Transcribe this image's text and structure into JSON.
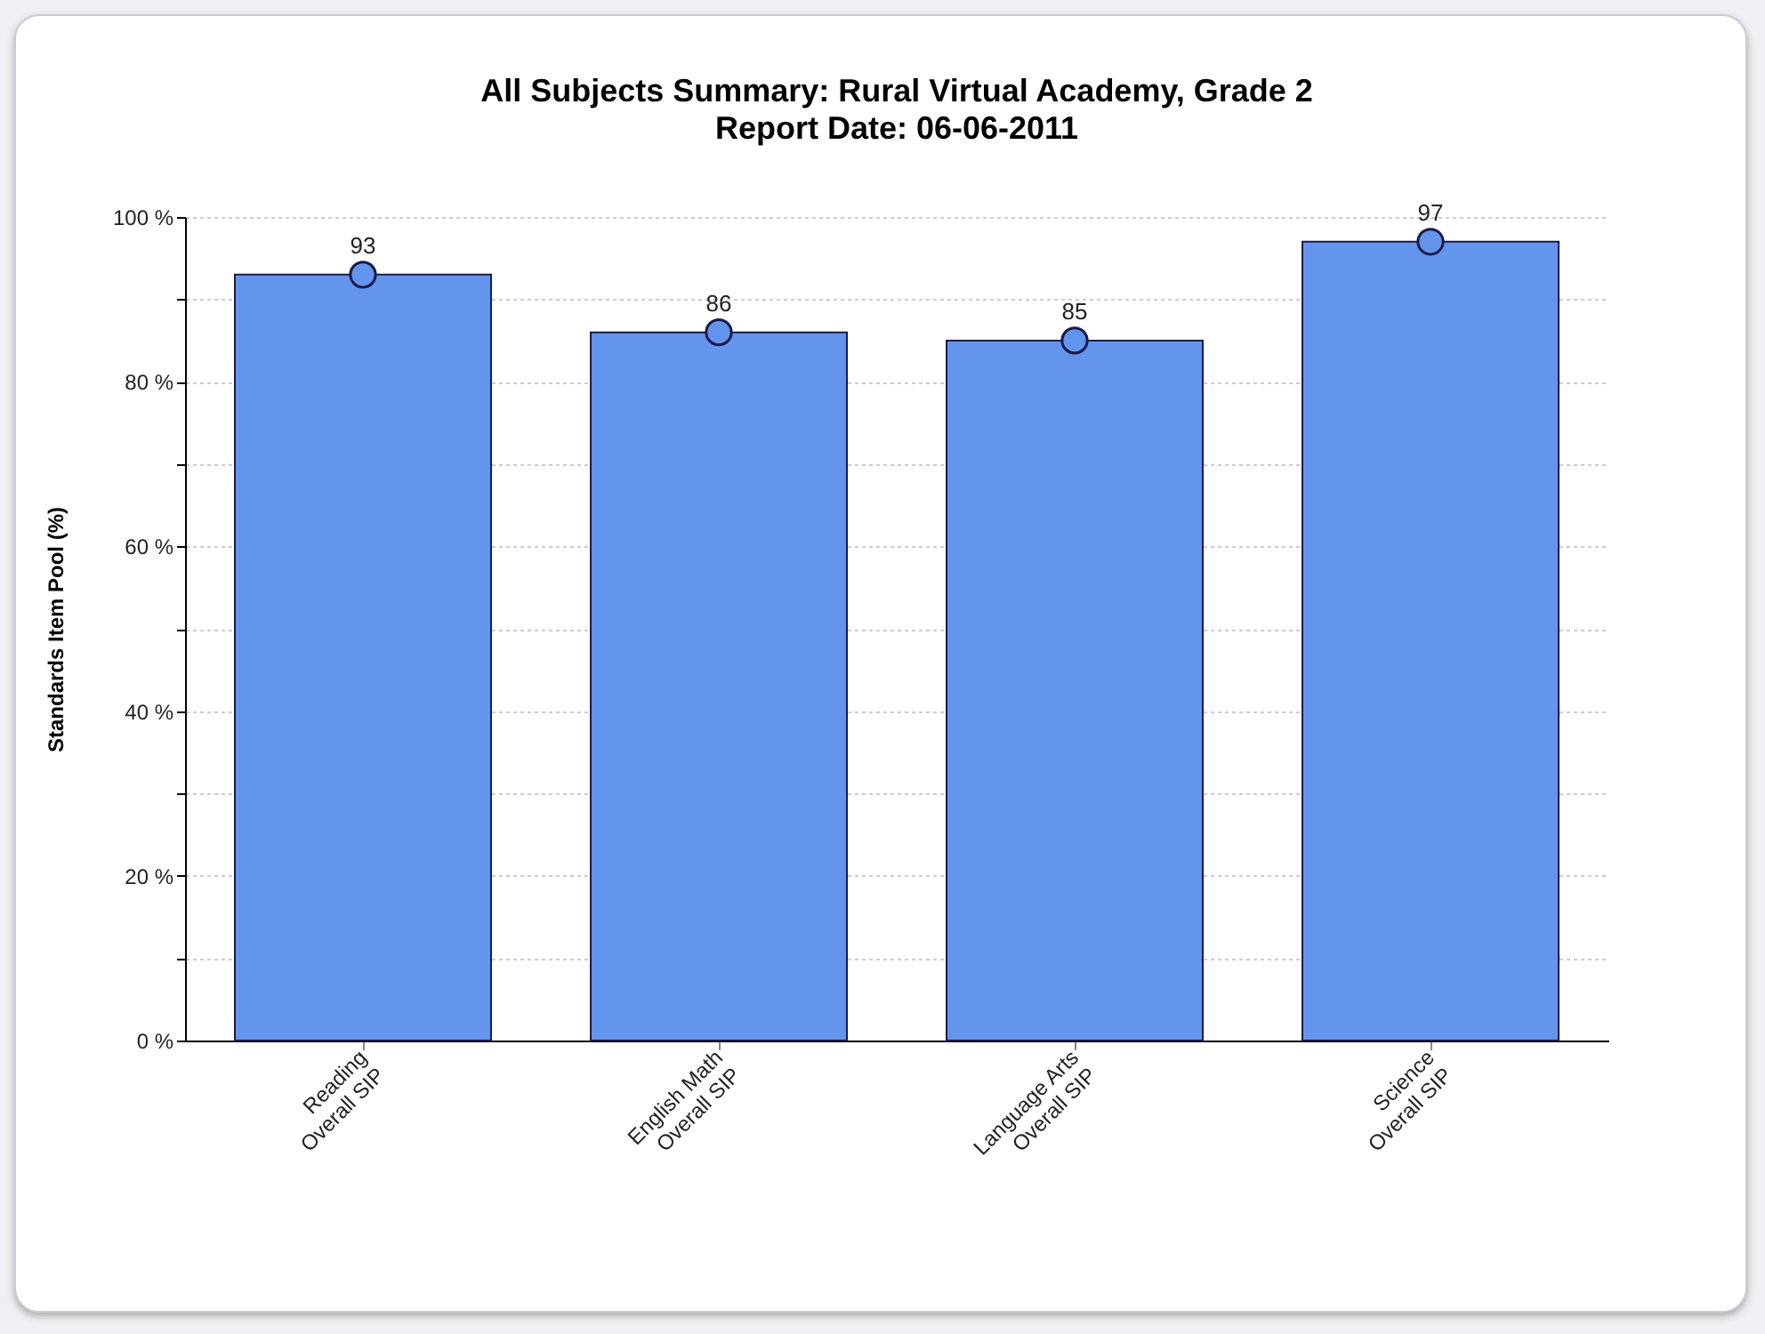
{
  "chart_data": {
    "type": "bar",
    "title": "All Subjects Summary: Rural Virtual Academy, Grade 2",
    "subtitle": "Report Date: 06-06-2011",
    "ylabel": "Standards Item Pool (%)",
    "categories": [
      "Reading\nOverall SIP",
      "English Math\nOverall SIP",
      "Language Arts\nOverall SIP",
      "Science\nOverall SIP"
    ],
    "series": [
      {
        "color": "#6495ed",
        "values": [
          93,
          86,
          85,
          97
        ]
      },
      {
        "type": "scatter",
        "color": "#6495ed",
        "marker": "circle",
        "x": [
          "Reading\nOverall SIP",
          "English Math\nOverall SIP",
          "Language Arts\nOverall SIP",
          "Science\nOverall SIP"
        ],
        "values": [
          93,
          86,
          85,
          97
        ],
        "value_labels": [
          "93",
          "86",
          "85",
          "97"
        ]
      }
    ],
    "ylim": [
      0,
      100
    ],
    "yticks": [
      {
        "value": 0,
        "label": "0 %"
      },
      {
        "value": 10,
        "label": null
      },
      {
        "value": 20,
        "label": "20 %"
      },
      {
        "value": 30,
        "label": null
      },
      {
        "value": 40,
        "label": "40 %"
      },
      {
        "value": 50,
        "label": null
      },
      {
        "value": 60,
        "label": "60 %"
      },
      {
        "value": 70,
        "label": null
      },
      {
        "value": 80,
        "label": "80 %"
      },
      {
        "value": 90,
        "label": null
      },
      {
        "value": 100,
        "label": "100 %"
      }
    ],
    "grid": "y"
  }
}
